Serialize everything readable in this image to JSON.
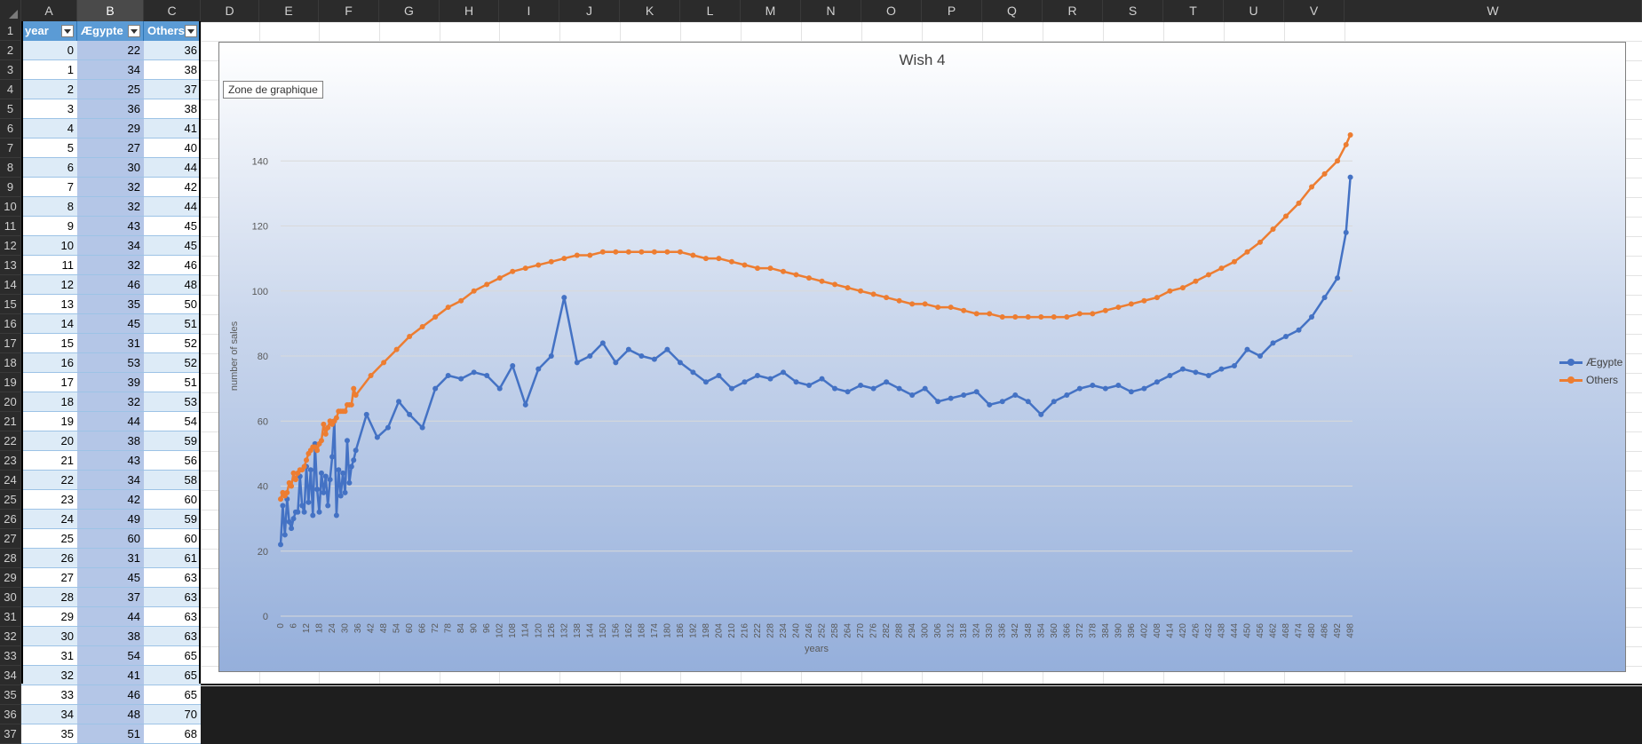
{
  "columns": [
    "A",
    "B",
    "C",
    "D",
    "E",
    "F",
    "G",
    "H",
    "I",
    "J",
    "K",
    "L",
    "M",
    "N",
    "O",
    "P",
    "Q",
    "R",
    "S",
    "T",
    "U",
    "V",
    "W"
  ],
  "selected_column": "B",
  "table": {
    "headers": [
      "year",
      "Ægypte",
      "Others"
    ],
    "rows": [
      [
        0,
        22,
        36
      ],
      [
        1,
        34,
        38
      ],
      [
        2,
        25,
        37
      ],
      [
        3,
        36,
        38
      ],
      [
        4,
        29,
        41
      ],
      [
        5,
        27,
        40
      ],
      [
        6,
        30,
        44
      ],
      [
        7,
        32,
        42
      ],
      [
        8,
        32,
        44
      ],
      [
        9,
        43,
        45
      ],
      [
        10,
        34,
        45
      ],
      [
        11,
        32,
        46
      ],
      [
        12,
        46,
        48
      ],
      [
        13,
        35,
        50
      ],
      [
        14,
        45,
        51
      ],
      [
        15,
        31,
        52
      ],
      [
        16,
        53,
        52
      ],
      [
        17,
        39,
        51
      ],
      [
        18,
        32,
        53
      ],
      [
        19,
        44,
        54
      ],
      [
        20,
        38,
        59
      ],
      [
        21,
        43,
        56
      ],
      [
        22,
        34,
        58
      ],
      [
        23,
        42,
        60
      ],
      [
        24,
        49,
        59
      ],
      [
        25,
        60,
        60
      ],
      [
        26,
        31,
        61
      ],
      [
        27,
        45,
        63
      ],
      [
        28,
        37,
        63
      ],
      [
        29,
        44,
        63
      ],
      [
        30,
        38,
        63
      ],
      [
        31,
        54,
        65
      ],
      [
        32,
        41,
        65
      ],
      [
        33,
        46,
        65
      ],
      [
        34,
        48,
        70
      ],
      [
        35,
        51,
        68
      ]
    ]
  },
  "row_numbers": [
    "1",
    "2",
    "3",
    "4",
    "5",
    "6",
    "7",
    "8",
    "9",
    "10",
    "11",
    "12",
    "13",
    "14",
    "15",
    "16",
    "17",
    "18",
    "19",
    "20",
    "21",
    "22",
    "23",
    "24",
    "25",
    "26",
    "27",
    "28",
    "29",
    "30",
    "31",
    "32",
    "33",
    "34",
    "35",
    "36",
    "37"
  ],
  "chart_tooltip": "Zone de graphique",
  "colors": {
    "egypte": "#4472c4",
    "others": "#ed7d31",
    "header_fill": "#5b9bd5",
    "band_fill": "#ddebf7"
  },
  "chart_data": {
    "type": "line",
    "title": "Wish 4",
    "xlabel": "years",
    "ylabel": "number of sales",
    "ylim": [
      0,
      160
    ],
    "yticks": [
      0,
      20,
      40,
      60,
      80,
      100,
      120,
      140
    ],
    "x_range": [
      0,
      499
    ],
    "x_tick_step": 6,
    "grid": true,
    "legend_position": "right",
    "series": [
      {
        "name": "Ægypte",
        "color": "#4472c4",
        "points": [
          [
            0,
            22
          ],
          [
            1,
            34
          ],
          [
            2,
            25
          ],
          [
            3,
            36
          ],
          [
            4,
            29
          ],
          [
            5,
            27
          ],
          [
            6,
            30
          ],
          [
            7,
            32
          ],
          [
            8,
            32
          ],
          [
            9,
            43
          ],
          [
            10,
            34
          ],
          [
            11,
            32
          ],
          [
            12,
            46
          ],
          [
            13,
            35
          ],
          [
            14,
            45
          ],
          [
            15,
            31
          ],
          [
            16,
            53
          ],
          [
            17,
            39
          ],
          [
            18,
            32
          ],
          [
            19,
            44
          ],
          [
            20,
            38
          ],
          [
            21,
            43
          ],
          [
            22,
            34
          ],
          [
            23,
            42
          ],
          [
            24,
            49
          ],
          [
            25,
            60
          ],
          [
            26,
            31
          ],
          [
            27,
            45
          ],
          [
            28,
            37
          ],
          [
            29,
            44
          ],
          [
            30,
            38
          ],
          [
            31,
            54
          ],
          [
            32,
            41
          ],
          [
            33,
            46
          ],
          [
            34,
            48
          ],
          [
            35,
            51
          ],
          [
            40,
            62
          ],
          [
            45,
            55
          ],
          [
            50,
            58
          ],
          [
            55,
            66
          ],
          [
            60,
            62
          ],
          [
            66,
            58
          ],
          [
            72,
            70
          ],
          [
            78,
            74
          ],
          [
            84,
            73
          ],
          [
            90,
            75
          ],
          [
            96,
            74
          ],
          [
            102,
            70
          ],
          [
            108,
            77
          ],
          [
            114,
            65
          ],
          [
            120,
            76
          ],
          [
            126,
            80
          ],
          [
            132,
            98
          ],
          [
            138,
            78
          ],
          [
            144,
            80
          ],
          [
            150,
            84
          ],
          [
            156,
            78
          ],
          [
            162,
            82
          ],
          [
            168,
            80
          ],
          [
            174,
            79
          ],
          [
            180,
            82
          ],
          [
            186,
            78
          ],
          [
            192,
            75
          ],
          [
            198,
            72
          ],
          [
            204,
            74
          ],
          [
            210,
            70
          ],
          [
            216,
            72
          ],
          [
            222,
            74
          ],
          [
            228,
            73
          ],
          [
            234,
            75
          ],
          [
            240,
            72
          ],
          [
            246,
            71
          ],
          [
            252,
            73
          ],
          [
            258,
            70
          ],
          [
            264,
            69
          ],
          [
            270,
            71
          ],
          [
            276,
            70
          ],
          [
            282,
            72
          ],
          [
            288,
            70
          ],
          [
            294,
            68
          ],
          [
            300,
            70
          ],
          [
            306,
            66
          ],
          [
            312,
            67
          ],
          [
            318,
            68
          ],
          [
            324,
            69
          ],
          [
            330,
            65
          ],
          [
            336,
            66
          ],
          [
            342,
            68
          ],
          [
            348,
            66
          ],
          [
            354,
            62
          ],
          [
            360,
            66
          ],
          [
            366,
            68
          ],
          [
            372,
            70
          ],
          [
            378,
            71
          ],
          [
            384,
            70
          ],
          [
            390,
            71
          ],
          [
            396,
            69
          ],
          [
            402,
            70
          ],
          [
            408,
            72
          ],
          [
            414,
            74
          ],
          [
            420,
            76
          ],
          [
            426,
            75
          ],
          [
            432,
            74
          ],
          [
            438,
            76
          ],
          [
            444,
            77
          ],
          [
            450,
            82
          ],
          [
            456,
            80
          ],
          [
            462,
            84
          ],
          [
            468,
            86
          ],
          [
            474,
            88
          ],
          [
            480,
            92
          ],
          [
            486,
            98
          ],
          [
            492,
            104
          ],
          [
            496,
            118
          ],
          [
            498,
            135
          ]
        ]
      },
      {
        "name": "Others",
        "color": "#ed7d31",
        "points": [
          [
            0,
            36
          ],
          [
            1,
            38
          ],
          [
            2,
            37
          ],
          [
            3,
            38
          ],
          [
            4,
            41
          ],
          [
            5,
            40
          ],
          [
            6,
            44
          ],
          [
            7,
            42
          ],
          [
            8,
            44
          ],
          [
            9,
            45
          ],
          [
            10,
            45
          ],
          [
            11,
            46
          ],
          [
            12,
            48
          ],
          [
            13,
            50
          ],
          [
            14,
            51
          ],
          [
            15,
            52
          ],
          [
            16,
            52
          ],
          [
            17,
            51
          ],
          [
            18,
            53
          ],
          [
            19,
            54
          ],
          [
            20,
            59
          ],
          [
            21,
            56
          ],
          [
            22,
            58
          ],
          [
            23,
            60
          ],
          [
            24,
            59
          ],
          [
            25,
            60
          ],
          [
            26,
            61
          ],
          [
            27,
            63
          ],
          [
            28,
            63
          ],
          [
            29,
            63
          ],
          [
            30,
            63
          ],
          [
            31,
            65
          ],
          [
            32,
            65
          ],
          [
            33,
            65
          ],
          [
            34,
            70
          ],
          [
            35,
            68
          ],
          [
            42,
            74
          ],
          [
            48,
            78
          ],
          [
            54,
            82
          ],
          [
            60,
            86
          ],
          [
            66,
            89
          ],
          [
            72,
            92
          ],
          [
            78,
            95
          ],
          [
            84,
            97
          ],
          [
            90,
            100
          ],
          [
            96,
            102
          ],
          [
            102,
            104
          ],
          [
            108,
            106
          ],
          [
            114,
            107
          ],
          [
            120,
            108
          ],
          [
            126,
            109
          ],
          [
            132,
            110
          ],
          [
            138,
            111
          ],
          [
            144,
            111
          ],
          [
            150,
            112
          ],
          [
            156,
            112
          ],
          [
            162,
            112
          ],
          [
            168,
            112
          ],
          [
            174,
            112
          ],
          [
            180,
            112
          ],
          [
            186,
            112
          ],
          [
            192,
            111
          ],
          [
            198,
            110
          ],
          [
            204,
            110
          ],
          [
            210,
            109
          ],
          [
            216,
            108
          ],
          [
            222,
            107
          ],
          [
            228,
            107
          ],
          [
            234,
            106
          ],
          [
            240,
            105
          ],
          [
            246,
            104
          ],
          [
            252,
            103
          ],
          [
            258,
            102
          ],
          [
            264,
            101
          ],
          [
            270,
            100
          ],
          [
            276,
            99
          ],
          [
            282,
            98
          ],
          [
            288,
            97
          ],
          [
            294,
            96
          ],
          [
            300,
            96
          ],
          [
            306,
            95
          ],
          [
            312,
            95
          ],
          [
            318,
            94
          ],
          [
            324,
            93
          ],
          [
            330,
            93
          ],
          [
            336,
            92
          ],
          [
            342,
            92
          ],
          [
            348,
            92
          ],
          [
            354,
            92
          ],
          [
            360,
            92
          ],
          [
            366,
            92
          ],
          [
            372,
            93
          ],
          [
            378,
            93
          ],
          [
            384,
            94
          ],
          [
            390,
            95
          ],
          [
            396,
            96
          ],
          [
            402,
            97
          ],
          [
            408,
            98
          ],
          [
            414,
            100
          ],
          [
            420,
            101
          ],
          [
            426,
            103
          ],
          [
            432,
            105
          ],
          [
            438,
            107
          ],
          [
            444,
            109
          ],
          [
            450,
            112
          ],
          [
            456,
            115
          ],
          [
            462,
            119
          ],
          [
            468,
            123
          ],
          [
            474,
            127
          ],
          [
            480,
            132
          ],
          [
            486,
            136
          ],
          [
            492,
            140
          ],
          [
            496,
            145
          ],
          [
            498,
            148
          ]
        ]
      }
    ]
  }
}
